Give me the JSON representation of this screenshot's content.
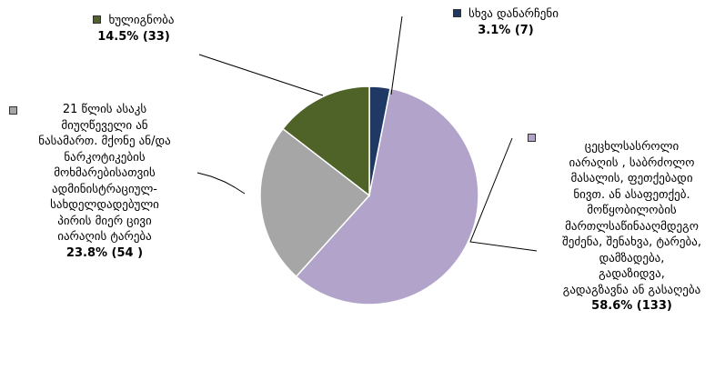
{
  "chart_data": {
    "type": "pie",
    "slices": [
      {
        "label": "სხვა დანარჩენი",
        "value": 7,
        "percent_label": "3.1%  (7)",
        "color": "#1f3864"
      },
      {
        "label": "ცეცხლსასროლი იარაღის , საბრძოლო მასალის, ფეთქებადი ნივთ. ან ასაფეთქებ. მოწყობილობის მართლსაწინააღმდეგო შეძენა, შენახვა, ტარება, დამზადება, გადაზიდვა, გადაგზავნა ან გასაღება",
        "value": 133,
        "percent_label": "58.6%  (133)",
        "color": "#b1a3c9"
      },
      {
        "label": "21 წლის ასაკს მიუღწეველი ან ნასამართ. მქონე ან/და ნარკოტიკების მოხმარებისათვის ადმინისტრაციულ-სახდელდადებული პირის მიერ ცივი იარაღის ტარება",
        "value": 54,
        "percent_label": "23.8%  (54 )",
        "color": "#a6a6a6"
      },
      {
        "label": "ხულიგნობა",
        "value": 33,
        "percent_label": "14.5%  (33)",
        "color": "#4f6228"
      }
    ]
  },
  "labels": {
    "other_name": "სხვა დანარჩენი",
    "other_val": "3.1%  (7)",
    "weapons_lines": [
      "ცეცხლსასროლი",
      "იარაღის , საბრძოლო",
      "მასალის, ფეთქებადი",
      "ნივთ. ან ასაფეთქებ.",
      "მოწყობილობის",
      "მართლსაწინააღმდეგო",
      "შეძენა, შენახვა, ტარება,",
      "დამზადება,",
      "გადაზიდვა,",
      "გადაგზავნა ან გასაღება"
    ],
    "weapons_val": "58.6%  (133)",
    "cold_lines": [
      "21 წლის ასაკს",
      "მიუღწეველი ან",
      "ნასამართ. მქონე ან/და",
      "ნარკოტიკების",
      "მოხმარებისათვის",
      "ადმინისტრაციულ-",
      "სახდელდადებული",
      "პირის მიერ ცივი",
      "იარაღის ტარება"
    ],
    "cold_val": "23.8%  (54 )",
    "hool_name": "ხულიგნობა",
    "hool_val": "14.5%  (33)"
  }
}
